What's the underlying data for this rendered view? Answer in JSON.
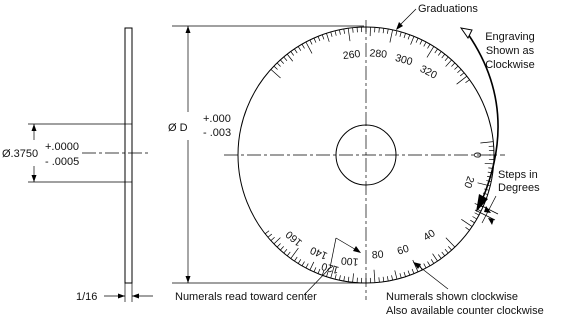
{
  "labels": {
    "graduations": "Graduations",
    "engraving_line1": "Engraving",
    "engraving_line2": "Shown as",
    "engraving_line3": "Clockwise",
    "steps_line1": "Steps in",
    "steps_line2": "Degrees",
    "numerals_center": "Numerals read toward center",
    "numerals_clockwise_line1": "Numerals shown clockwise",
    "numerals_clockwise_line2": "Also available counter clockwise"
  },
  "dimensions": {
    "bore_symbol": "Ø.3750",
    "bore_tol_plus": "+.0000",
    "bore_tol_minus": "- .0005",
    "diameter_symbol": "Ø D",
    "diameter_tol_plus": "+.000",
    "diameter_tol_minus": "- .003",
    "thickness": "1/16"
  },
  "dial": {
    "top_numerals": [
      "260",
      "280",
      "300",
      "320"
    ],
    "right_numerals": [
      "0",
      "20"
    ],
    "bottom_numerals": [
      "160",
      "140",
      "120",
      "100",
      "80",
      "60",
      "40"
    ]
  }
}
